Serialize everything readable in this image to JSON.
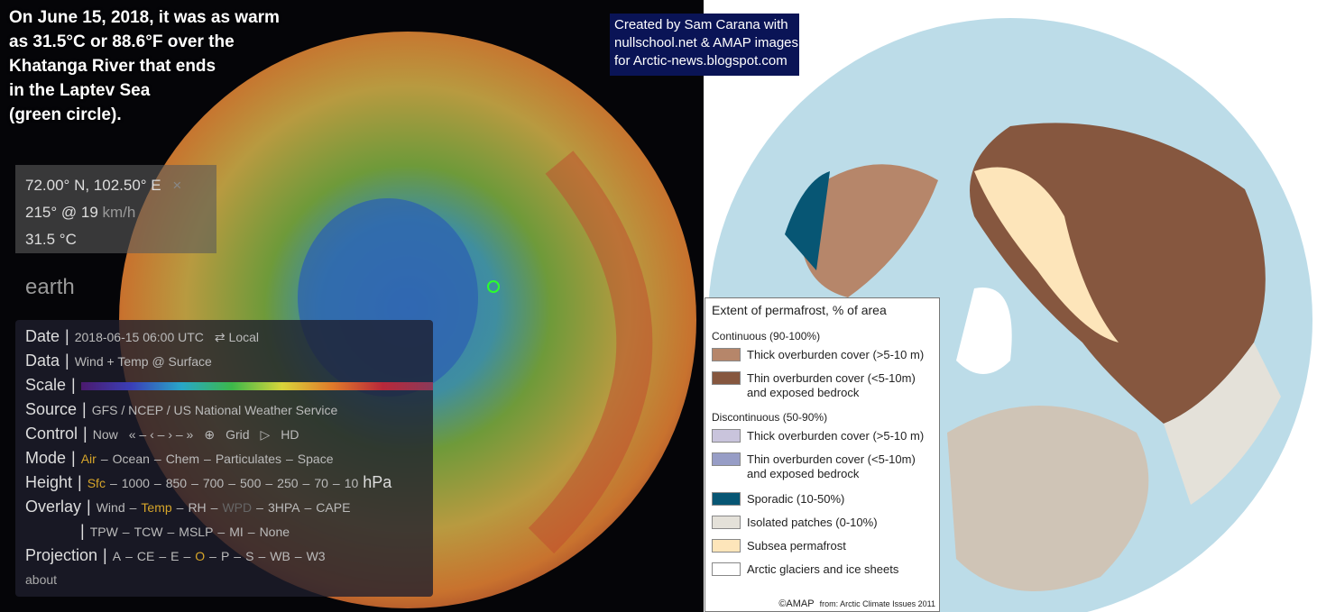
{
  "caption": {
    "lines": [
      "On June 15, 2018, it was as warm",
      "as 31.5°C or 88.6°F over the",
      "Khatanga River that ends",
      "in the Laptev Sea",
      "(green circle)."
    ]
  },
  "credit": {
    "lines": [
      "Created by Sam Carana with",
      "nullschool.net & AMAP images",
      "for Arctic-news.blogspot.com"
    ]
  },
  "location_panel": {
    "coordinates": "72.00° N, 102.50° E",
    "close": "×",
    "wind": "215° @ 19",
    "wind_unit": "km/h",
    "temperature": "31.5 °C"
  },
  "brand": "earth",
  "menu": {
    "separator": "–",
    "divider": "|",
    "rows": [
      {
        "label": "Date",
        "items": [
          "2018-06-15 06:00 UTC",
          "⇄ Local"
        ],
        "separated": false
      },
      {
        "label": "Data",
        "items": [
          "Wind + Temp @ Surface"
        ],
        "separated": false
      },
      {
        "label": "Scale",
        "items": [],
        "separated": false
      },
      {
        "label": "Source",
        "items": [
          "GFS / NCEP / US National Weather Service"
        ],
        "separated": false
      },
      {
        "label": "Control",
        "items": [
          "Now",
          "« – ‹ – › – »",
          "⊕",
          "Grid",
          "▷",
          "HD"
        ],
        "separated": false
      },
      {
        "label": "Mode",
        "items": [
          "Air",
          "Ocean",
          "Chem",
          "Particulates",
          "Space"
        ],
        "separated": true,
        "active": 0
      },
      {
        "label": "Height",
        "items": [
          "Sfc",
          "1000",
          "850",
          "700",
          "500",
          "250",
          "70",
          "10"
        ],
        "separated": true,
        "active": 0,
        "unit": "hPa"
      },
      {
        "label": "Overlay",
        "items": [
          "Wind",
          "Temp",
          "RH",
          "WPD",
          "3HPA",
          "CAPE"
        ],
        "separated": true,
        "active": 1,
        "dimmed": 3,
        "items_line2": [
          "TPW",
          "TCW",
          "MSLP",
          "MI",
          "None"
        ]
      },
      {
        "label": "Projection",
        "items": [
          "A",
          "CE",
          "E",
          "O",
          "P",
          "S",
          "WB",
          "W3"
        ],
        "separated": true,
        "active": 3
      }
    ],
    "about": "about"
  },
  "legend": {
    "title": "Extent of permafrost, % of area",
    "groups": [
      {
        "heading": "Continuous (90-100%)",
        "items": [
          {
            "lines": [
              "Thick overburden cover (>5-10 m)"
            ],
            "color": "#b6866a"
          },
          {
            "lines": [
              "Thin overburden cover (<5-10m)",
              "and exposed bedrock"
            ],
            "color": "#86573f"
          }
        ]
      },
      {
        "heading": "Discontinuous (50-90%)",
        "items": [
          {
            "lines": [
              "Thick overburden cover (>5-10 m)"
            ],
            "color": "#c9c4dc"
          },
          {
            "lines": [
              "Thin overburden cover (<5-10m)",
              "and exposed bedrock"
            ],
            "color": "#979dc6"
          }
        ]
      },
      {
        "items": [
          {
            "lines": [
              "Sporadic (10-50%)"
            ],
            "color": "#075674"
          },
          {
            "lines": [
              "Isolated patches (0-10%)"
            ],
            "color": "#e4e1d9"
          },
          {
            "lines": [
              "Subsea permafrost"
            ],
            "color": "#fde5ba"
          },
          {
            "lines": [
              "Arctic glaciers and ice sheets"
            ],
            "color": "#ffffff"
          }
        ]
      }
    ],
    "copyright": "©AMAP",
    "source": "from: Arctic Climate Issues 2011"
  }
}
